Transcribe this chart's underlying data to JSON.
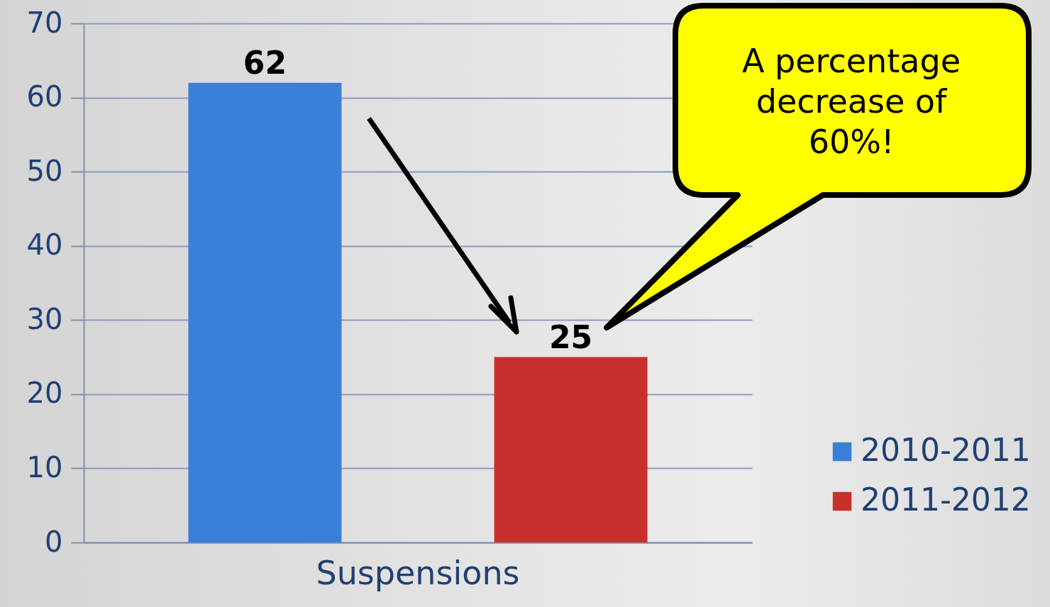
{
  "chart_data": {
    "type": "bar",
    "categories": [
      "Suspensions"
    ],
    "series": [
      {
        "name": "2010-2011",
        "color": "#3a7fd8",
        "values": [
          62
        ]
      },
      {
        "name": "2011-2012",
        "color": "#c8302c",
        "values": [
          25
        ]
      }
    ],
    "ylim": [
      0,
      70
    ],
    "yticks": [
      0,
      10,
      20,
      30,
      40,
      50,
      60,
      70
    ],
    "grid": "y",
    "legend": "right",
    "data_labels": true,
    "annotations": [
      "A percentage decrease of 60%!"
    ]
  }
}
